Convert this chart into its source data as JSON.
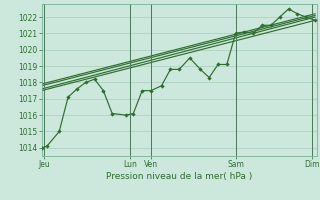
{
  "xlabel": "Pression niveau de la mer( hPa )",
  "bg_color": "#cce8dc",
  "grid_color": "#aaccbc",
  "line_color": "#2d6e2d",
  "ylim": [
    1013.5,
    1022.8
  ],
  "yticks": [
    1014,
    1015,
    1016,
    1017,
    1018,
    1019,
    1020,
    1021,
    1022
  ],
  "line1_x": [
    0,
    0.3,
    1.0,
    1.5,
    2.0,
    2.5,
    3.0,
    3.5,
    4.0,
    4.8,
    5.2,
    5.7,
    6.2,
    6.8,
    7.3,
    7.8,
    8.4,
    9.0,
    9.5,
    10.0,
    10.5,
    11.0,
    11.5,
    12.0,
    12.5,
    13.0,
    13.5,
    14.0,
    14.5,
    15.0,
    15.5
  ],
  "line1_y": [
    1014.0,
    1014.1,
    1015.0,
    1017.1,
    1017.6,
    1018.0,
    1018.2,
    1017.5,
    1016.1,
    1016.0,
    1016.1,
    1017.5,
    1017.5,
    1017.8,
    1018.8,
    1018.8,
    1019.5,
    1018.8,
    1018.3,
    1019.1,
    1019.1,
    1021.0,
    1021.1,
    1021.0,
    1021.5,
    1021.5,
    1022.0,
    1022.5,
    1022.2,
    1022.0,
    1021.8
  ],
  "trend1_x": [
    0,
    15.5
  ],
  "trend1_y": [
    1017.5,
    1021.8
  ],
  "trend2_x": [
    0,
    15.5
  ],
  "trend2_y": [
    1017.6,
    1022.0
  ],
  "trend3_x": [
    0,
    15.5
  ],
  "trend3_y": [
    1017.8,
    1022.1
  ],
  "trend4_x": [
    0,
    15.5
  ],
  "trend4_y": [
    1017.9,
    1022.2
  ],
  "major_xtick_positions": [
    0.15,
    5.0,
    6.2,
    11.0,
    15.3
  ],
  "major_xtick_labels": [
    "Jeu",
    "Lun",
    "Ven",
    "Sam",
    "Dim"
  ],
  "vline_positions": [
    0.15,
    5.0,
    6.2,
    11.0,
    15.3
  ],
  "xlim": [
    0,
    15.6
  ]
}
